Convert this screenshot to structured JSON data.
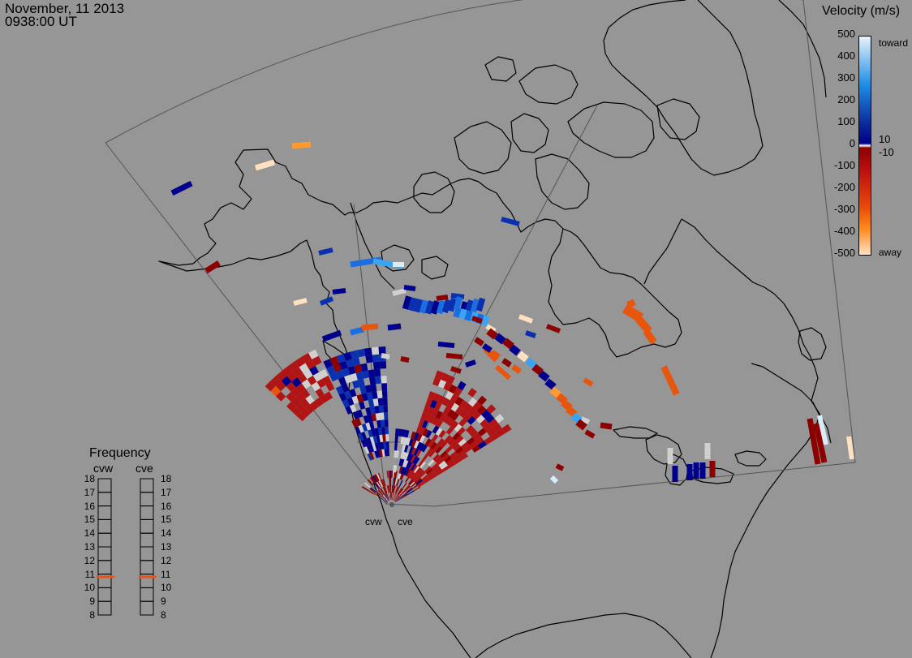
{
  "header": {
    "date": "November, 11 2013",
    "time": "0938:00 UT"
  },
  "colorbar": {
    "title": "Velocity (m/s)",
    "ticks": [
      "500",
      "400",
      "300",
      "200",
      "100",
      "10",
      "0",
      "-10",
      "-100",
      "-200",
      "-300",
      "-400",
      "-500"
    ],
    "toward_label": "toward",
    "away_label": "away",
    "colors": [
      "#e6f3fc",
      "#1f8ee6",
      "#0a2a9a",
      "#00008c",
      "#ffffff",
      "#8c0000",
      "#c01010",
      "#e84a0a",
      "#ff8a1a",
      "#ffe2c2"
    ]
  },
  "frequency": {
    "title": "Frequency",
    "radars": [
      {
        "name": "cvw",
        "freq_mhz": 10.8
      },
      {
        "name": "cve",
        "freq_mhz": 10.8
      }
    ],
    "scale": [
      "18",
      "17",
      "16",
      "15",
      "14",
      "13",
      "12",
      "11",
      "10",
      "9",
      "8"
    ],
    "marker_color": "#e8541c"
  },
  "sites": [
    {
      "label": "cvw"
    },
    {
      "label": "cve"
    }
  ],
  "map_colors": {
    "background": "#969696",
    "land_outline": "#000000",
    "fov_outline": "#505050"
  }
}
